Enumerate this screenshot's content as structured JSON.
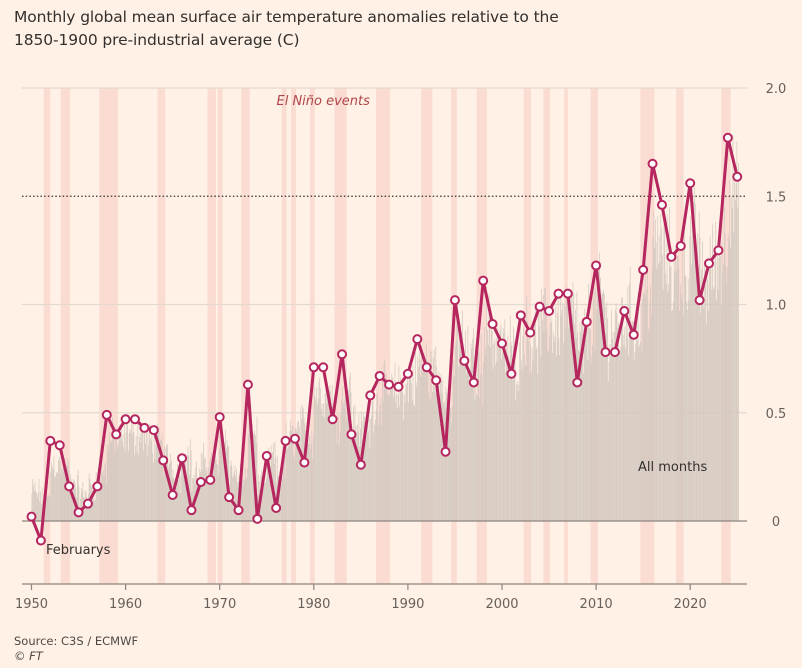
{
  "header": {
    "title": "Monthly global mean surface air temperature anomalies relative to the 1850-1900 pre-industrial average (C)"
  },
  "footer": {
    "source": "Source: C3S / ECMWF",
    "copyright": "© FT"
  },
  "colors": {
    "background": "#fff1e5",
    "line": "#b5265e",
    "marker_fill": "#ffffff",
    "elnino_band": "#fbdcd3",
    "monthly_bars": "#d3c8bf",
    "gridline": "#e3d9d0",
    "threshold_line": "#33302e",
    "axis": "#8c8580"
  },
  "chart_data": {
    "type": "line",
    "title": "Monthly global mean surface air temperature anomalies relative to the 1850-1900 pre-industrial average (C)",
    "xlabel": "",
    "ylabel": "",
    "xlim": [
      1950,
      2025
    ],
    "ylim": [
      -0.3,
      2.0
    ],
    "grid": true,
    "y_axis_position": "right",
    "x_ticks": [
      1950,
      1960,
      1970,
      1980,
      1990,
      2000,
      2010,
      2020
    ],
    "x_tick_labels": [
      "1950",
      "1960",
      "1970",
      "1980",
      "1990",
      "2000",
      "2010",
      "2020"
    ],
    "y_ticks": [
      0,
      0.5,
      1.0,
      1.5,
      2.0
    ],
    "y_tick_labels": [
      "0",
      "0.5",
      "1.0",
      "1.5",
      "2.0"
    ],
    "threshold": {
      "value": 1.5,
      "style": "dotted"
    },
    "series": [
      {
        "name": "Februarys",
        "x": [
          1950,
          1951,
          1952,
          1953,
          1954,
          1955,
          1956,
          1957,
          1958,
          1959,
          1960,
          1961,
          1962,
          1963,
          1964,
          1965,
          1966,
          1967,
          1968,
          1969,
          1970,
          1971,
          1972,
          1973,
          1974,
          1975,
          1976,
          1977,
          1978,
          1979,
          1980,
          1981,
          1982,
          1983,
          1984,
          1985,
          1986,
          1987,
          1988,
          1989,
          1990,
          1991,
          1992,
          1993,
          1994,
          1995,
          1996,
          1997,
          1998,
          1999,
          2000,
          2001,
          2002,
          2003,
          2004,
          2005,
          2006,
          2007,
          2008,
          2009,
          2010,
          2011,
          2012,
          2013,
          2014,
          2015,
          2016,
          2017,
          2018,
          2019,
          2020,
          2021,
          2022,
          2023,
          2024,
          2025
        ],
        "values": [
          0.02,
          -0.09,
          0.37,
          0.35,
          0.16,
          0.04,
          0.08,
          0.16,
          0.49,
          0.4,
          0.47,
          0.47,
          0.43,
          0.42,
          0.28,
          0.12,
          0.29,
          0.05,
          0.18,
          0.19,
          0.48,
          0.11,
          0.05,
          0.63,
          0.01,
          0.3,
          0.06,
          0.37,
          0.38,
          0.27,
          0.71,
          0.71,
          0.47,
          0.77,
          0.4,
          0.26,
          0.58,
          0.67,
          0.63,
          0.62,
          0.68,
          0.84,
          0.71,
          0.65,
          0.32,
          1.02,
          0.74,
          0.64,
          1.11,
          0.91,
          0.82,
          0.68,
          0.95,
          0.87,
          0.99,
          0.97,
          1.05,
          1.05,
          0.64,
          0.92,
          1.18,
          0.78,
          0.78,
          0.97,
          0.86,
          1.16,
          1.65,
          1.46,
          1.22,
          1.27,
          1.56,
          1.02,
          1.19,
          1.25,
          1.77,
          1.59
        ]
      },
      {
        "name": "All months",
        "kind": "monthly-bars",
        "note": "Monthly anomalies shown as thin grey bars; approximate envelope by year",
        "x": [
          1950,
          1955,
          1960,
          1965,
          1970,
          1975,
          1980,
          1985,
          1990,
          1995,
          2000,
          2005,
          2010,
          2015,
          2020,
          2023,
          2024,
          2025
        ],
        "values_approx_max": [
          0.3,
          0.25,
          0.5,
          0.4,
          0.45,
          0.35,
          0.7,
          0.65,
          0.8,
          0.95,
          1.0,
          1.1,
          1.2,
          1.25,
          1.45,
          1.5,
          1.8,
          1.65
        ]
      }
    ],
    "elnino_events": [
      [
        1951.3,
        1952.0
      ],
      [
        1953.1,
        1954.1
      ],
      [
        1957.2,
        1959.2
      ],
      [
        1963.4,
        1964.2
      ],
      [
        1968.7,
        1969.6
      ],
      [
        1969.8,
        1970.3
      ],
      [
        1972.3,
        1973.2
      ],
      [
        1976.6,
        1977.1
      ],
      [
        1977.6,
        1978.1
      ],
      [
        1979.6,
        1980.1
      ],
      [
        1982.2,
        1983.5
      ],
      [
        1986.6,
        1988.1
      ],
      [
        1991.4,
        1992.6
      ],
      [
        1994.6,
        1995.2
      ],
      [
        1997.3,
        1998.4
      ],
      [
        2002.3,
        2003.1
      ],
      [
        2004.4,
        2005.1
      ],
      [
        2006.6,
        2007.0
      ],
      [
        2009.4,
        2010.2
      ],
      [
        2014.7,
        2016.2
      ],
      [
        2018.5,
        2019.3
      ],
      [
        2023.3,
        2024.3
      ]
    ],
    "annotations": [
      {
        "text": "El Niño events",
        "at_x": 1981,
        "at_y": 1.92
      },
      {
        "text": "Februarys",
        "at_x": 1951.5,
        "at_y": -0.13
      },
      {
        "text": "All months",
        "at_x": 2015,
        "at_y": 0.25
      }
    ]
  }
}
